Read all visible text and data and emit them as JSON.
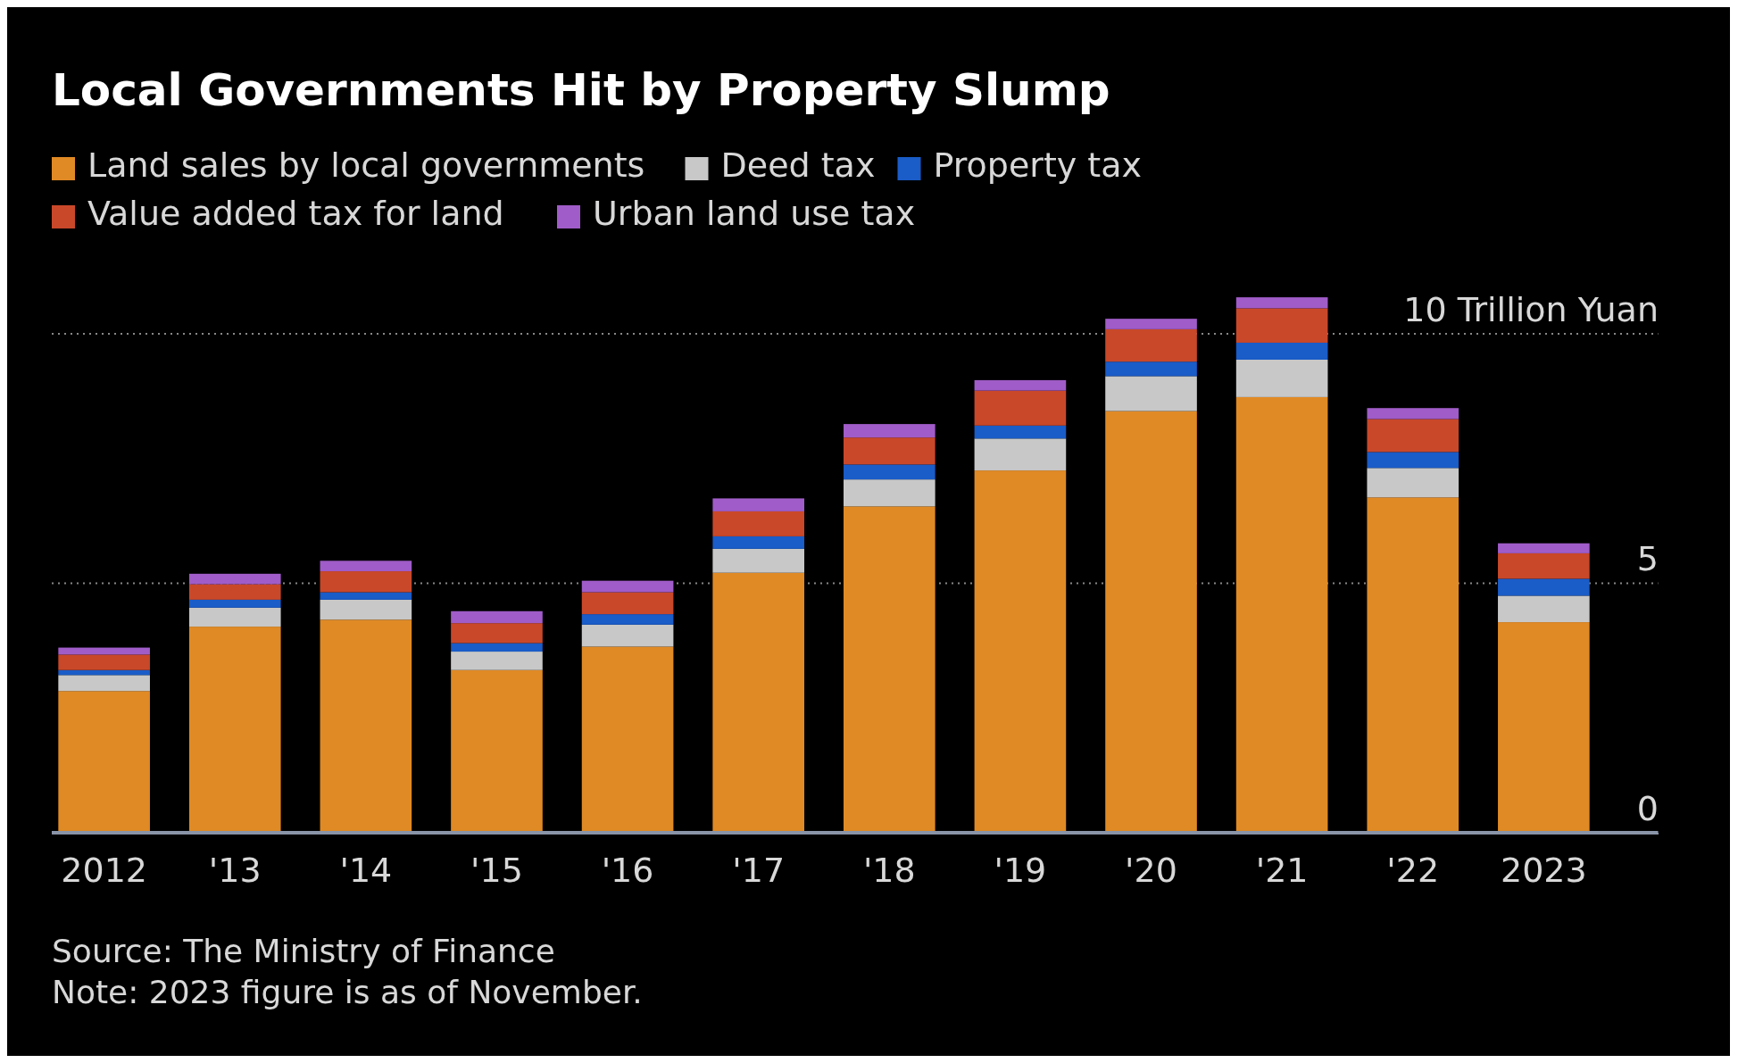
{
  "chart_data": {
    "type": "bar",
    "title": "Local Governments Hit by Property Slump",
    "stacked": true,
    "legend": "top left",
    "grid": "y",
    "categories": [
      "2012",
      "'13",
      "'14",
      "'15",
      "'16",
      "'17",
      "'18",
      "'19",
      "'20",
      "'21",
      "'22",
      "2023"
    ],
    "series": [
      {
        "name": "Land sales by local governments",
        "color": "#e08a25",
        "values": [
          2.84,
          4.13,
          4.27,
          3.26,
          3.73,
          5.21,
          6.54,
          7.26,
          8.45,
          8.73,
          6.72,
          4.22
        ]
      },
      {
        "name": "Deed tax",
        "color": "#c8c8c8",
        "values": [
          0.32,
          0.38,
          0.4,
          0.37,
          0.44,
          0.48,
          0.54,
          0.64,
          0.7,
          0.75,
          0.59,
          0.53
        ]
      },
      {
        "name": "Property tax",
        "color": "#1a5cc8",
        "values": [
          0.1,
          0.16,
          0.15,
          0.17,
          0.21,
          0.25,
          0.3,
          0.26,
          0.29,
          0.34,
          0.32,
          0.34
        ]
      },
      {
        "name": "Value added tax for land",
        "color": "#c9482a",
        "values": [
          0.31,
          0.31,
          0.42,
          0.4,
          0.44,
          0.5,
          0.54,
          0.7,
          0.65,
          0.69,
          0.66,
          0.51
        ]
      },
      {
        "name": "Urban land use tax",
        "color": "#a05cc8",
        "values": [
          0.14,
          0.21,
          0.21,
          0.24,
          0.23,
          0.26,
          0.27,
          0.21,
          0.21,
          0.22,
          0.22,
          0.2
        ]
      }
    ],
    "ylim": [
      0,
      11
    ],
    "yticks": [
      0,
      5,
      {
        "value": 10,
        "label": "10 Trillion Yuan"
      }
    ],
    "annotations": [
      "Source: The Ministry of Finance",
      "Note: 2023 figure is as of November."
    ]
  }
}
